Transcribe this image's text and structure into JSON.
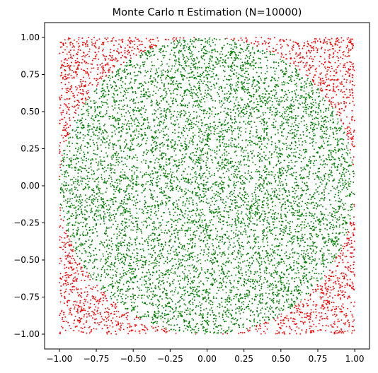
{
  "chart_data": {
    "type": "scatter",
    "title": "Monte Carlo π Estimation (N=10000)",
    "xlabel": "",
    "ylabel": "",
    "xlim": [
      -1.1,
      1.1
    ],
    "ylim": [
      -1.1,
      1.1
    ],
    "xticks": [
      -1.0,
      -0.75,
      -0.5,
      -0.25,
      0.0,
      0.25,
      0.5,
      0.75,
      1.0
    ],
    "yticks": [
      -1.0,
      -0.75,
      -0.5,
      -0.25,
      0.0,
      0.25,
      0.5,
      0.75,
      1.0
    ],
    "xtick_labels": [
      "−1.00",
      "−0.75",
      "−0.50",
      "−0.25",
      "0.00",
      "0.25",
      "0.50",
      "0.75",
      "1.00"
    ],
    "ytick_labels": [
      "−1.00",
      "−0.75",
      "−0.50",
      "−0.25",
      "0.00",
      "0.25",
      "0.50",
      "0.75",
      "1.00"
    ],
    "grid": false,
    "n_points": 10000,
    "sampling": "uniform random points in the square [-1, 1] × [-1, 1]",
    "series": [
      {
        "condition": "inside unit circle (x² + y² ≤ 1)",
        "color": "#008000"
      },
      {
        "condition": "outside unit circle (x² + y² > 1)",
        "color": "#ff0000"
      }
    ]
  }
}
